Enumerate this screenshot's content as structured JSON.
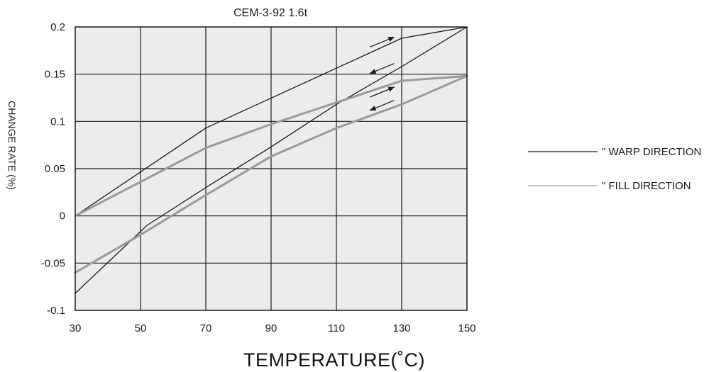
{
  "chart_data": {
    "type": "line",
    "title": "CEM-3-92  1.6t",
    "xlabel": "TEMPERATURE(˚C)",
    "ylabel": "CHANGE RATE (%)",
    "xlim": [
      30,
      150
    ],
    "ylim": [
      -0.1,
      0.2
    ],
    "x_ticks": [
      "30",
      "50",
      "70",
      "90",
      "110",
      "130",
      "150"
    ],
    "y_ticks": [
      "0.2",
      "0.15",
      "0.1",
      "0.05",
      "0",
      "-0.05",
      "-0.1"
    ],
    "grid": true,
    "legend_position": "right",
    "colors": {
      "plot_background": "#ececec",
      "grid": "#1a1a1a",
      "warp": "#1a1a1a",
      "fill": "#9a9a9a"
    },
    "series": [
      {
        "name": "\" WARP DIRECTION",
        "key": "warp",
        "heating": {
          "x": [
            30,
            70,
            130,
            150
          ],
          "y": [
            0.0,
            0.093,
            0.188,
            0.2
          ]
        },
        "cooling": {
          "x": [
            150,
            130,
            110,
            90,
            70,
            52,
            30
          ],
          "y": [
            0.2,
            0.158,
            0.118,
            0.073,
            0.03,
            -0.01,
            -0.082
          ]
        }
      },
      {
        "name": "\" FILL DIRECTION",
        "key": "fill",
        "heating": {
          "x": [
            30,
            70,
            90,
            110,
            130,
            150
          ],
          "y": [
            0.0,
            0.072,
            0.097,
            0.12,
            0.143,
            0.148
          ]
        },
        "cooling": {
          "x": [
            150,
            130,
            110,
            90,
            70,
            50,
            30
          ],
          "y": [
            0.148,
            0.118,
            0.093,
            0.063,
            0.022,
            -0.02,
            -0.06
          ]
        }
      }
    ],
    "annotations": [
      {
        "symbol": "arrow-right",
        "series": "warp",
        "direction": "heating",
        "x": 124,
        "y": 0.184
      },
      {
        "symbol": "arrow-left",
        "series": "warp",
        "direction": "cooling",
        "x": 124,
        "y": 0.156
      },
      {
        "symbol": "arrow-right",
        "series": "fill",
        "direction": "heating",
        "x": 124,
        "y": 0.131
      },
      {
        "symbol": "arrow-left",
        "series": "fill",
        "direction": "cooling",
        "x": 124,
        "y": 0.117
      }
    ]
  }
}
